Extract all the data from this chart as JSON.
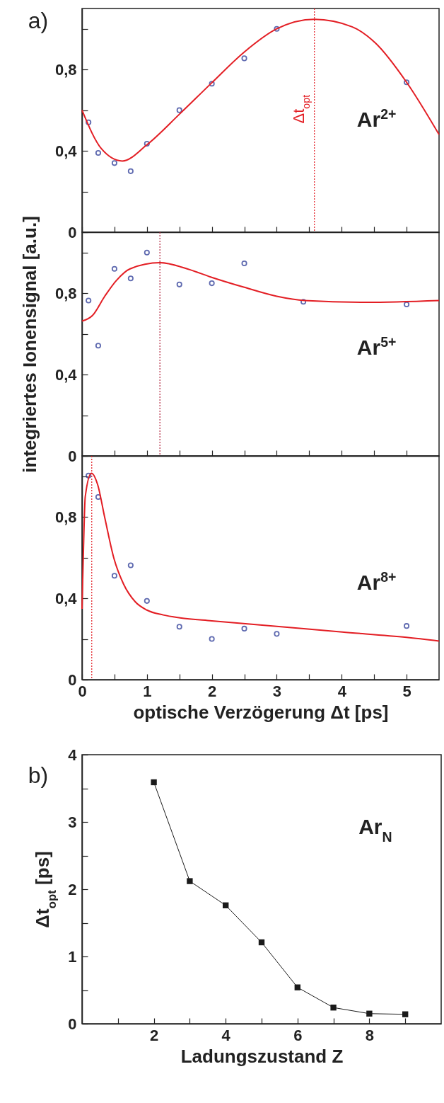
{
  "chart_data": [
    {
      "type": "scatter",
      "annotations": [
        "a)",
        "Ar$^{2+}$"
      ],
      "xlim": [
        0,
        5.5
      ],
      "ylim": [
        0,
        1.1
      ],
      "tick_labels": "y",
      "grid": false,
      "xticks": [
        0,
        {
          "value": 0.5,
          "label": null
        },
        1,
        {
          "value": 1.5,
          "label": null
        },
        2,
        {
          "value": 2.5,
          "label": null
        },
        3,
        {
          "value": 3.5,
          "label": null
        },
        4,
        {
          "value": 4.5,
          "label": null
        },
        5
      ],
      "yticks": [
        0,
        {
          "value": 0.2,
          "label": null
        },
        {
          "value": 0.4,
          "label": "0,4"
        },
        {
          "value": 0.6,
          "label": null
        },
        {
          "value": 0.8,
          "label": "0,8"
        },
        {
          "value": 1.0,
          "label": null
        }
      ],
      "series": [
        {
          "marker": "circle",
          "color": "#1c2c8f",
          "x": [
            0.1,
            0.25,
            0.5,
            0.75,
            1.0,
            1.5,
            2.0,
            2.5,
            3.0,
            5.0
          ],
          "values": [
            0.54,
            0.39,
            0.34,
            0.3,
            0.435,
            0.6,
            0.73,
            0.855,
            1.0,
            0.737
          ]
        },
        {
          "type": "line",
          "color": "#e31e24",
          "x": [
            0,
            0.3,
            0.62,
            1.0,
            1.5,
            2.0,
            2.5,
            3.0,
            3.58,
            4.16,
            4.52,
            5.0,
            5.5
          ],
          "values": [
            0.6,
            0.41,
            0.35,
            0.43,
            0.58,
            0.735,
            0.886,
            1.0,
            1.047,
            1.01,
            0.93,
            0.737,
            0.48
          ]
        }
      ],
      "ref_lines": [
        {
          "axis": "x",
          "value": 3.58,
          "label": "Δt$_{opt}$",
          "color": "#e31e24",
          "line_style": "dotted"
        }
      ]
    },
    {
      "type": "scatter",
      "annotations": [
        "Ar$^{5+}$"
      ],
      "ylabel": "integriertes Ionensignal [a.u.]",
      "xlim": [
        0,
        5.5
      ],
      "ylim": [
        0,
        1.1
      ],
      "tick_labels": "y",
      "grid": false,
      "xticks": [
        0,
        {
          "value": 0.5,
          "label": null
        },
        1,
        {
          "value": 1.5,
          "label": null
        },
        2,
        {
          "value": 2.5,
          "label": null
        },
        3,
        {
          "value": 3.5,
          "label": null
        },
        4,
        {
          "value": 4.5,
          "label": null
        },
        5
      ],
      "yticks": [
        0,
        {
          "value": 0.2,
          "label": null
        },
        {
          "value": 0.4,
          "label": "0,4"
        },
        {
          "value": 0.6,
          "label": null
        },
        {
          "value": 0.8,
          "label": "0,8"
        },
        {
          "value": 1.0,
          "label": null
        }
      ],
      "series": [
        {
          "marker": "circle",
          "color": "#1c2c8f",
          "x": [
            0.1,
            0.25,
            0.5,
            0.75,
            1.0,
            1.5,
            2.0,
            2.5,
            3.41,
            5.0
          ],
          "values": [
            0.764,
            0.542,
            0.92,
            0.873,
            1.0,
            0.843,
            0.849,
            0.947,
            0.758,
            0.745
          ]
        },
        {
          "type": "line",
          "color": "#e31e24",
          "x": [
            0,
            0.16,
            0.35,
            0.53,
            0.74,
            1.2,
            1.62,
            1.98,
            2.49,
            3.0,
            3.43,
            4.38,
            5.5
          ],
          "values": [
            0.663,
            0.69,
            0.785,
            0.863,
            0.92,
            0.95,
            0.92,
            0.88,
            0.83,
            0.785,
            0.764,
            0.755,
            0.764
          ]
        }
      ],
      "ref_lines": [
        {
          "axis": "x",
          "value": 1.2,
          "color": "#b0203a",
          "line_style": "dotted"
        }
      ]
    },
    {
      "type": "scatter",
      "annotations": [
        "Ar$^{8+}$"
      ],
      "xlabel": "optische Verzögerung Δt [ps]",
      "xlim": [
        0,
        5.5
      ],
      "ylim": [
        0,
        1.1
      ],
      "grid": false,
      "xticks": [
        0,
        {
          "value": 0.5,
          "label": null
        },
        1,
        {
          "value": 1.5,
          "label": null
        },
        2,
        {
          "value": 2.5,
          "label": null
        },
        3,
        {
          "value": 3.5,
          "label": null
        },
        4,
        {
          "value": 4.5,
          "label": null
        },
        5
      ],
      "yticks": [
        0,
        {
          "value": 0.2,
          "label": null
        },
        {
          "value": 0.4,
          "label": "0,4"
        },
        {
          "value": 0.6,
          "label": null
        },
        {
          "value": 0.8,
          "label": "0,8"
        },
        {
          "value": 1.0,
          "label": null
        }
      ],
      "series": [
        {
          "marker": "circle",
          "color": "#1c2c8f",
          "x": [
            0.1,
            0.25,
            0.5,
            0.75,
            1.0,
            1.5,
            2.0,
            2.5,
            3.0,
            5.0
          ],
          "values": [
            1.003,
            0.898,
            0.511,
            0.562,
            0.387,
            0.26,
            0.2,
            0.251,
            0.225,
            0.264
          ]
        },
        {
          "type": "line",
          "color": "#e31e24",
          "x": [
            0,
            0.02,
            0.05,
            0.145,
            0.24,
            0.35,
            0.49,
            0.64,
            0.82,
            1.0,
            1.25,
            1.51,
            2.0,
            3.0,
            4.01,
            5.0,
            5.5
          ],
          "values": [
            0.348,
            0.61,
            0.9,
            1.015,
            0.96,
            0.797,
            0.598,
            0.47,
            0.383,
            0.342,
            0.318,
            0.304,
            0.289,
            0.262,
            0.234,
            0.208,
            0.19
          ]
        }
      ],
      "ref_lines": [
        {
          "axis": "x",
          "value": 0.15,
          "color": "#e31e24",
          "line_style": "dotted"
        }
      ]
    },
    {
      "type": "line",
      "annotations": [
        "b)",
        "Ar$_{N}$"
      ],
      "xlabel": "Ladungszustand Z",
      "ylabel": "Δt$_{opt}$ [ps]",
      "xlim": [
        0,
        10
      ],
      "ylim": [
        0,
        4
      ],
      "grid": false,
      "xticks": [
        {
          "value": 1,
          "label": null
        },
        2,
        {
          "value": 3,
          "label": null
        },
        4,
        {
          "value": 5,
          "label": null
        },
        6,
        {
          "value": 7,
          "label": null
        },
        8,
        {
          "value": 9,
          "label": null
        }
      ],
      "yticks": [
        0,
        {
          "value": 0.5,
          "label": null
        },
        1,
        {
          "value": 1.5,
          "label": null
        },
        2,
        {
          "value": 2.5,
          "label": null
        },
        3,
        {
          "value": 3.5,
          "label": null
        },
        4
      ],
      "series": [
        {
          "marker": "square",
          "color": "#1a1a1a",
          "x": [
            2,
            3,
            4,
            5,
            6,
            7,
            8,
            9
          ],
          "values": [
            3.59,
            2.12,
            1.76,
            1.21,
            0.54,
            0.24,
            0.15,
            0.14
          ]
        }
      ]
    }
  ]
}
